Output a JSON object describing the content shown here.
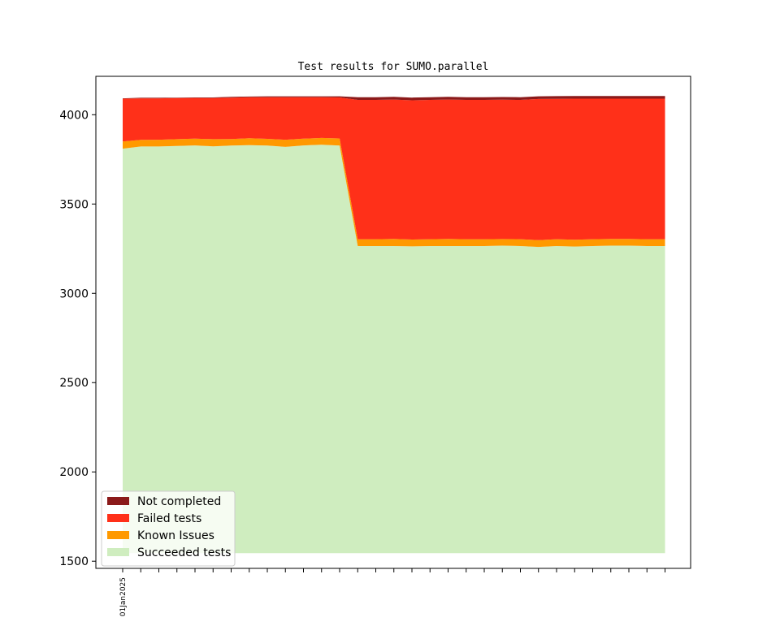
{
  "chart_data": {
    "type": "area",
    "title": "Test results for SUMO.parallel",
    "xlabel": "",
    "ylabel": "",
    "x_tick_labels": [
      "01Jan2025",
      "",
      "",
      "",
      "",
      "",
      "",
      "",
      "",
      "",
      "",
      "",
      "",
      "",
      "",
      "",
      "",
      "",
      "",
      "",
      "",
      "",
      "",
      "",
      "",
      "",
      "",
      "",
      "",
      "",
      ""
    ],
    "ylim": [
      1460,
      4215
    ],
    "yticks": [
      1500,
      2000,
      2500,
      3000,
      3500,
      4000
    ],
    "baseline": 1545,
    "legend_position": "lower-left",
    "grid": false,
    "series": [
      {
        "name": "Succeeded tests",
        "color": "#cfedbf",
        "values": [
          3810,
          3822,
          3822,
          3825,
          3828,
          3823,
          3827,
          3830,
          3827,
          3820,
          3828,
          3832,
          3827,
          3265,
          3265,
          3265,
          3263,
          3265,
          3265,
          3265,
          3265,
          3267,
          3265,
          3260,
          3265,
          3262,
          3265,
          3267,
          3267,
          3265,
          3265
        ]
      },
      {
        "name": "Known Issues",
        "color": "#ff9900",
        "values": [
          40,
          37,
          38,
          38,
          38,
          40,
          37,
          38,
          38,
          40,
          38,
          38,
          40,
          38,
          38,
          40,
          38,
          38,
          40,
          38,
          38,
          37,
          38,
          38,
          38,
          38,
          38,
          38,
          38,
          38,
          38
        ]
      },
      {
        "name": "Failed tests",
        "color": "#ff3019",
        "values": [
          240,
          233,
          232,
          230,
          228,
          230,
          232,
          230,
          233,
          238,
          232,
          228,
          230,
          780,
          780,
          780,
          780,
          780,
          780,
          780,
          780,
          780,
          780,
          790,
          786,
          790,
          787,
          785,
          785,
          787,
          787
        ]
      },
      {
        "name": "Not completed",
        "color": "#8b1a1a",
        "values": [
          2,
          3,
          3,
          3,
          3,
          4,
          4,
          4,
          5,
          5,
          5,
          5,
          6,
          15,
          15,
          15,
          15,
          15,
          15,
          15,
          15,
          15,
          15,
          15,
          15,
          15,
          15,
          15,
          15,
          15,
          15
        ]
      }
    ]
  }
}
